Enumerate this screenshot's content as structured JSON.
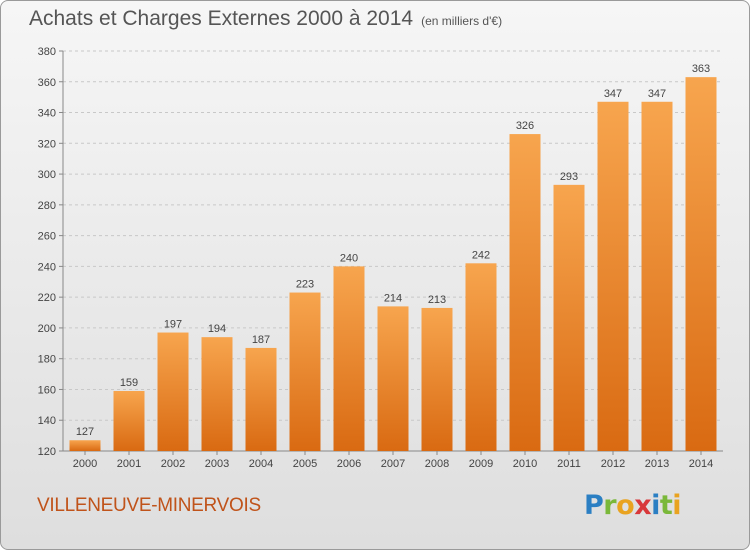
{
  "chart_data": {
    "type": "bar",
    "title": "Achats et Charges Externes 2000 à 2014",
    "subtitle": "(en milliers d'€)",
    "categories": [
      "2000",
      "2001",
      "2002",
      "2003",
      "2004",
      "2005",
      "2006",
      "2007",
      "2008",
      "2009",
      "2010",
      "2011",
      "2012",
      "2013",
      "2014"
    ],
    "values": [
      127,
      159,
      197,
      194,
      187,
      223,
      240,
      214,
      213,
      242,
      326,
      293,
      347,
      347,
      363
    ],
    "ylim": [
      120,
      380
    ],
    "yticks": [
      120,
      140,
      160,
      180,
      200,
      220,
      240,
      260,
      280,
      300,
      320,
      340,
      360,
      380
    ],
    "grid": "horizontal dashed",
    "bar_color": "#f08a2c"
  },
  "commune": "VILLENEUVE-MINERVOIS",
  "logo": {
    "p": "P",
    "r": "r",
    "o": "o",
    "x": "x",
    "i1": "i",
    "t": "t",
    "i2": "i"
  }
}
